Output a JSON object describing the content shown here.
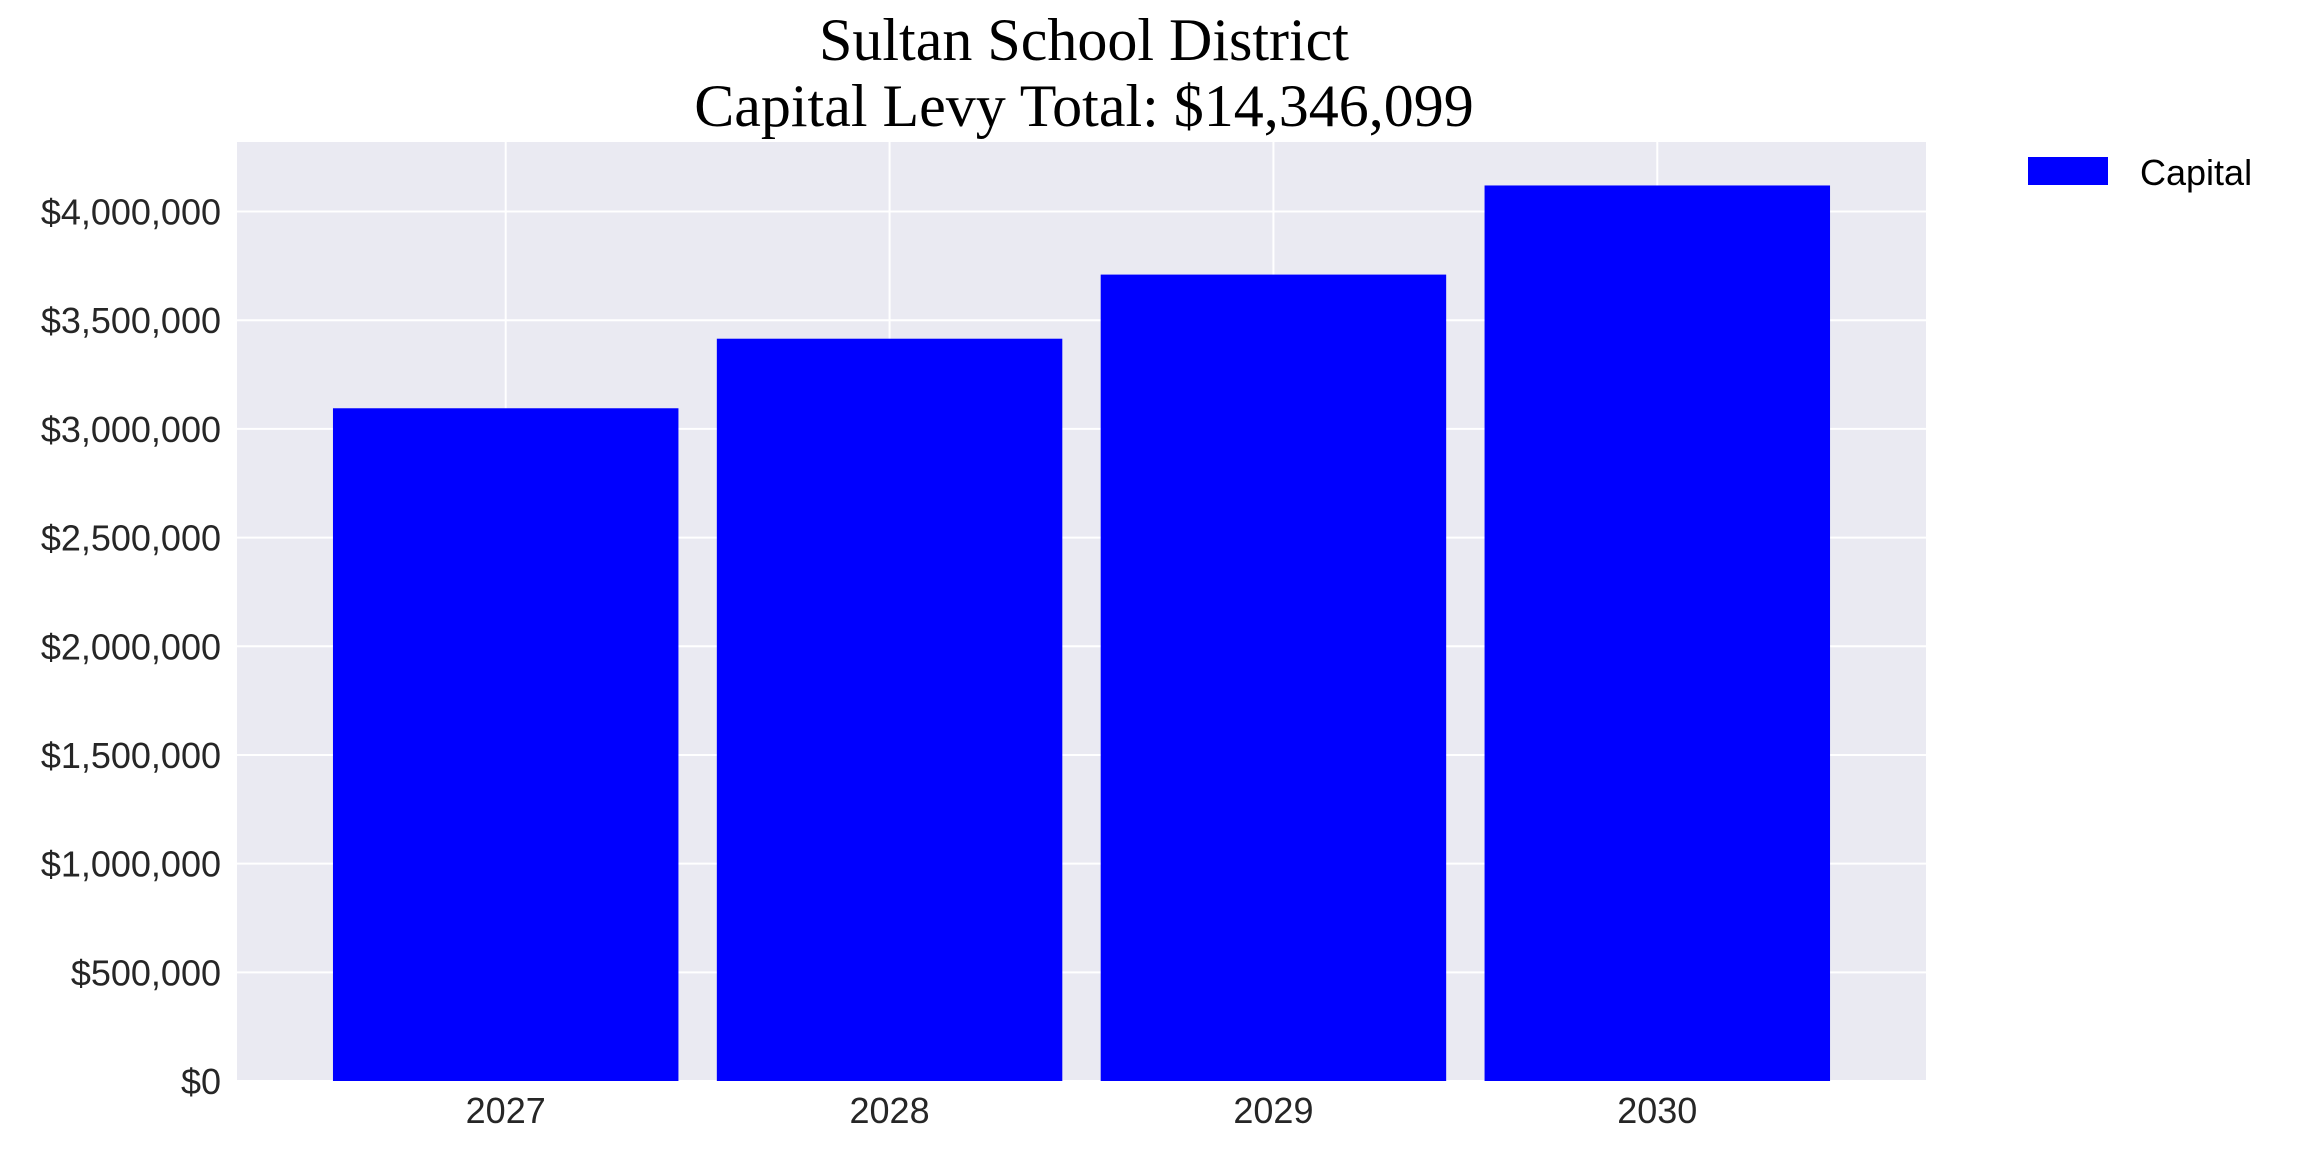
{
  "chart_data": {
    "type": "bar",
    "title": "Sultan School District",
    "subtitle": "Capital Levy Total: $14,346,099",
    "xlabel": "",
    "ylabel": "",
    "categories": [
      "2027",
      "2028",
      "2029",
      "2030"
    ],
    "series": [
      {
        "name": "Capital",
        "values": [
          3095000,
          3415000,
          3710000,
          4120000
        ],
        "color": "#0000ff"
      }
    ],
    "ylim": [
      0,
      4320000
    ],
    "yticks": [
      0,
      500000,
      1000000,
      1500000,
      2000000,
      2500000,
      3000000,
      3500000,
      4000000
    ],
    "ytick_labels": [
      "$0",
      "$500,000",
      "$1,000,000",
      "$1,500,000",
      "$2,000,000",
      "$2,500,000",
      "$3,000,000",
      "$3,500,000",
      "$4,000,000"
    ],
    "grid": true,
    "legend_position": "outside-top-right",
    "background_color": "#eaeaf2",
    "grid_color": "#ffffff"
  }
}
